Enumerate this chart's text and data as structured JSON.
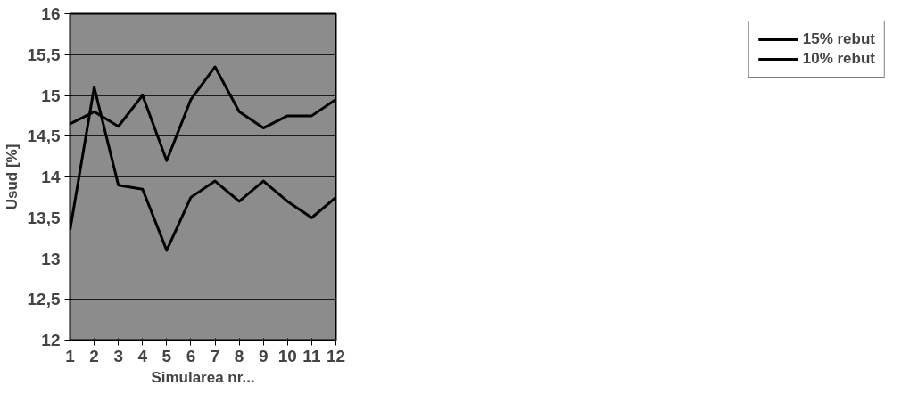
{
  "chart_data": {
    "type": "line",
    "xlabel": "Simularea nr...",
    "ylabel": "Usud [%]",
    "x": [
      1,
      2,
      3,
      4,
      5,
      6,
      7,
      8,
      9,
      10,
      11,
      12
    ],
    "series": [
      {
        "name": "15% rebut",
        "color": "#000000",
        "values": [
          14.65,
          14.8,
          14.62,
          15.0,
          14.2,
          14.95,
          15.35,
          14.8,
          14.6,
          14.75,
          14.75,
          14.95
        ]
      },
      {
        "name": "10% rebut",
        "color": "#000000",
        "values": [
          13.35,
          15.1,
          13.9,
          13.85,
          13.1,
          13.75,
          13.95,
          13.7,
          13.95,
          13.7,
          13.5,
          13.75
        ]
      }
    ],
    "xlim": [
      1,
      12
    ],
    "xticks": [
      1,
      2,
      3,
      4,
      5,
      6,
      7,
      8,
      9,
      10,
      11,
      12
    ],
    "ylim": [
      12,
      16
    ],
    "yticks": [
      12,
      {
        "value": 12.5,
        "label": "12,5"
      },
      13,
      {
        "value": 13.5,
        "label": "13,5"
      },
      14,
      {
        "value": 14.5,
        "label": "14,5"
      },
      15,
      {
        "value": 15.5,
        "label": "15,5"
      },
      16
    ],
    "grid": "y",
    "legend": "right",
    "line_style": "solid",
    "marker": "none"
  }
}
